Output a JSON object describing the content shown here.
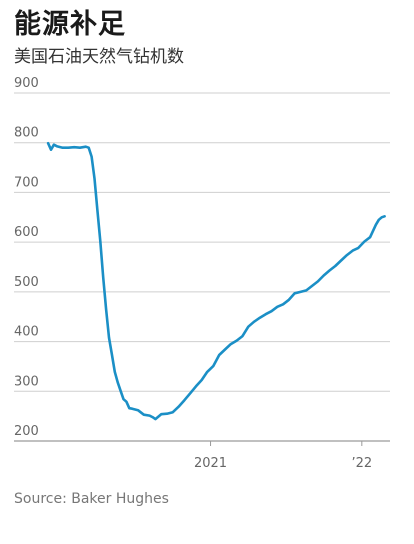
{
  "title": "能源补足",
  "subtitle": "美国石油天然气钻机数",
  "source": "Source: Baker Hughes",
  "colors": {
    "line": "#1b8fc6",
    "grid": "#cfcfcf",
    "axis": "#9a9a9a"
  },
  "chart_data": {
    "type": "line",
    "title": "能源补足",
    "subtitle": "美国石油天然气钻机数",
    "ylim": [
      200,
      900
    ],
    "yticks": [
      200,
      300,
      400,
      500,
      600,
      700,
      800,
      900
    ],
    "xlim": [
      "2019-12",
      "2022-03"
    ],
    "xticks": [
      {
        "x": "2021-01",
        "label": "2021"
      },
      {
        "x": "2022-01",
        "label": "’22"
      }
    ],
    "grid": true,
    "series": [
      {
        "x": [
          "2019-12-06",
          "2019-12-13",
          "2019-12-20",
          "2019-12-27",
          "2020-01-10",
          "2020-01-24",
          "2020-02-07",
          "2020-02-21",
          "2020-03-06",
          "2020-03-13",
          "2020-03-20",
          "2020-03-27",
          "2020-04-03",
          "2020-04-10",
          "2020-04-17",
          "2020-04-24",
          "2020-05-01",
          "2020-05-08",
          "2020-05-15",
          "2020-05-22",
          "2020-05-29",
          "2020-06-05",
          "2020-06-12",
          "2020-06-19",
          "2020-06-26",
          "2020-07-10",
          "2020-07-24",
          "2020-08-07",
          "2020-08-14",
          "2020-08-21",
          "2020-09-04",
          "2020-09-18",
          "2020-10-02",
          "2020-10-16",
          "2020-10-30",
          "2020-11-13",
          "2020-11-27",
          "2020-12-11",
          "2020-12-24",
          "2021-01-08",
          "2021-01-22",
          "2021-02-05",
          "2021-02-19",
          "2021-03-05",
          "2021-03-19",
          "2021-04-02",
          "2021-04-16",
          "2021-04-30",
          "2021-05-14",
          "2021-05-28",
          "2021-06-11",
          "2021-06-25",
          "2021-07-09",
          "2021-07-23",
          "2021-08-06",
          "2021-08-20",
          "2021-09-03",
          "2021-09-17",
          "2021-10-01",
          "2021-10-15",
          "2021-10-29",
          "2021-11-12",
          "2021-11-26",
          "2021-12-10",
          "2021-12-23",
          "2022-01-07",
          "2022-01-21",
          "2022-02-04",
          "2022-02-11",
          "2022-02-18",
          "2022-02-25"
        ],
        "y": [
          799,
          786,
          796,
          793,
          790,
          790,
          791,
          790,
          792,
          790,
          772,
          728,
          664,
          602,
          529,
          465,
          408,
          374,
          339,
          318,
          301,
          284,
          279,
          266,
          265,
          262,
          253,
          251,
          248,
          244,
          254,
          255,
          258,
          269,
          282,
          296,
          310,
          323,
          339,
          351,
          373,
          384,
          395,
          402,
          411,
          430,
          440,
          448,
          455,
          461,
          470,
          475,
          484,
          497,
          500,
          503,
          512,
          521,
          533,
          543,
          552,
          563,
          574,
          583,
          588,
          601,
          610,
          635,
          645,
          650,
          652
        ]
      }
    ]
  }
}
